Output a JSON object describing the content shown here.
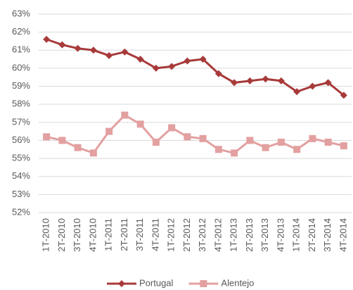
{
  "chart_data": {
    "type": "line",
    "categories": [
      "1T-2010",
      "2T-2010",
      "3T-2010",
      "4T-2010",
      "1T-2011",
      "2T-2011",
      "3T-2011",
      "4T-2011",
      "1T-2012",
      "2T-2012",
      "3T-2012",
      "4T-2012",
      "1T-2013",
      "2T-2013",
      "3T-2013",
      "4T-2013",
      "1T-2014",
      "2T-2014",
      "3T-2014",
      "4T-2014"
    ],
    "series": [
      {
        "name": "Portugal",
        "color": "#a83a3a",
        "marker": "diamond",
        "values": [
          61.6,
          61.3,
          61.1,
          61.0,
          60.7,
          60.9,
          60.5,
          60.0,
          60.1,
          60.4,
          60.5,
          59.7,
          59.2,
          59.3,
          59.4,
          59.3,
          58.7,
          59.0,
          59.2,
          58.5
        ]
      },
      {
        "name": "Alentejo",
        "color": "#e3a0a0",
        "marker": "square",
        "values": [
          56.2,
          56.0,
          55.6,
          55.3,
          56.5,
          57.4,
          56.9,
          55.9,
          56.7,
          56.2,
          56.1,
          55.5,
          55.3,
          56.0,
          55.6,
          55.9,
          55.5,
          56.1,
          55.9,
          55.7
        ]
      }
    ],
    "ylim": [
      52,
      63
    ],
    "yticks": [
      {
        "value": 52,
        "label": "52%"
      },
      {
        "value": 53,
        "label": "53%"
      },
      {
        "value": 54,
        "label": "54%"
      },
      {
        "value": 55,
        "label": "55%"
      },
      {
        "value": 56,
        "label": "56%"
      },
      {
        "value": 57,
        "label": "57%"
      },
      {
        "value": 58,
        "label": "58%"
      },
      {
        "value": 59,
        "label": "59%"
      },
      {
        "value": 60,
        "label": "60%"
      },
      {
        "value": 61,
        "label": "61%"
      },
      {
        "value": 62,
        "label": "62%"
      },
      {
        "value": 63,
        "label": "63%"
      }
    ],
    "grid": true,
    "legend": "bottom"
  }
}
